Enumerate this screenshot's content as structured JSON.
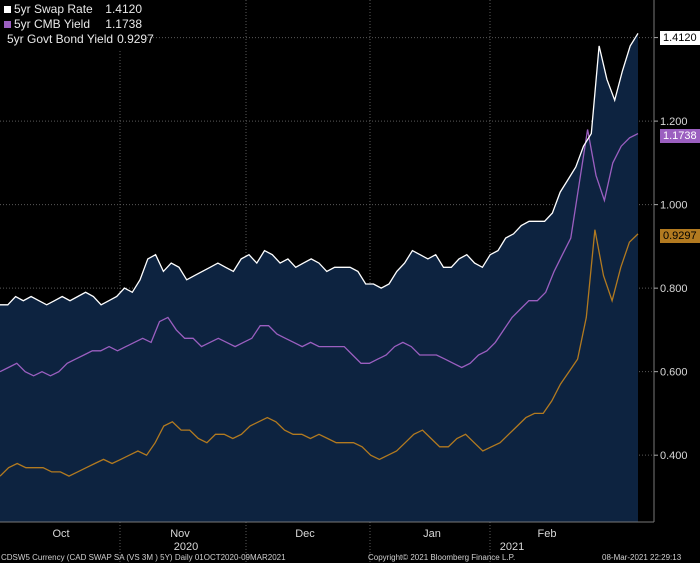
{
  "chart_data": {
    "type": "line",
    "x_labels": [
      "Oct",
      "Nov",
      "Dec",
      "Jan",
      "Feb"
    ],
    "x_year_labels": [
      "2020",
      "2021"
    ],
    "y_ticks": [
      "0.400",
      "0.600",
      "0.800",
      "1.000",
      "1.200",
      "1.4000"
    ],
    "ylim": [
      0.24,
      1.49
    ],
    "grid": true,
    "legend_position": "top-left",
    "series": [
      {
        "name": "5yr Swap Rate",
        "display_value": "1.4120",
        "color": "#ffffff",
        "values": [
          0.76,
          0.76,
          0.78,
          0.77,
          0.78,
          0.77,
          0.76,
          0.77,
          0.78,
          0.77,
          0.78,
          0.79,
          0.78,
          0.76,
          0.77,
          0.78,
          0.8,
          0.79,
          0.82,
          0.87,
          0.88,
          0.84,
          0.86,
          0.85,
          0.82,
          0.83,
          0.84,
          0.85,
          0.86,
          0.85,
          0.84,
          0.87,
          0.88,
          0.86,
          0.89,
          0.88,
          0.86,
          0.87,
          0.85,
          0.86,
          0.87,
          0.86,
          0.84,
          0.85,
          0.85,
          0.85,
          0.84,
          0.81,
          0.81,
          0.8,
          0.81,
          0.84,
          0.86,
          0.89,
          0.88,
          0.87,
          0.88,
          0.85,
          0.85,
          0.87,
          0.88,
          0.86,
          0.85,
          0.88,
          0.89,
          0.92,
          0.93,
          0.95,
          0.96,
          0.96,
          0.96,
          0.98,
          1.03,
          1.06,
          1.09,
          1.14,
          1.17,
          1.38,
          1.3,
          1.25,
          1.32,
          1.38,
          1.41
        ]
      },
      {
        "name": "5yr CMB Yield",
        "display_value": "1.1738",
        "color": "#9b5fc0",
        "values": [
          0.6,
          0.61,
          0.62,
          0.6,
          0.59,
          0.6,
          0.59,
          0.6,
          0.62,
          0.63,
          0.64,
          0.65,
          0.65,
          0.66,
          0.65,
          0.66,
          0.67,
          0.68,
          0.67,
          0.72,
          0.73,
          0.7,
          0.68,
          0.68,
          0.66,
          0.67,
          0.68,
          0.67,
          0.66,
          0.67,
          0.68,
          0.71,
          0.71,
          0.69,
          0.68,
          0.67,
          0.66,
          0.67,
          0.66,
          0.66,
          0.66,
          0.66,
          0.64,
          0.62,
          0.62,
          0.63,
          0.64,
          0.66,
          0.67,
          0.66,
          0.64,
          0.64,
          0.64,
          0.63,
          0.62,
          0.61,
          0.62,
          0.64,
          0.65,
          0.67,
          0.7,
          0.73,
          0.75,
          0.77,
          0.77,
          0.79,
          0.84,
          0.88,
          0.92,
          1.05,
          1.18,
          1.07,
          1.01,
          1.1,
          1.14,
          1.16,
          1.17
        ]
      },
      {
        "name": "5yr Govt Bond Yield",
        "display_value": "0.9297",
        "color": "#b27a20",
        "values": [
          0.35,
          0.37,
          0.38,
          0.37,
          0.37,
          0.37,
          0.36,
          0.36,
          0.35,
          0.36,
          0.37,
          0.38,
          0.39,
          0.38,
          0.39,
          0.4,
          0.41,
          0.4,
          0.43,
          0.47,
          0.48,
          0.46,
          0.46,
          0.44,
          0.43,
          0.45,
          0.45,
          0.44,
          0.45,
          0.47,
          0.48,
          0.49,
          0.48,
          0.46,
          0.45,
          0.45,
          0.44,
          0.45,
          0.44,
          0.43,
          0.43,
          0.43,
          0.42,
          0.4,
          0.39,
          0.4,
          0.41,
          0.43,
          0.45,
          0.46,
          0.44,
          0.42,
          0.42,
          0.44,
          0.45,
          0.43,
          0.41,
          0.42,
          0.43,
          0.45,
          0.47,
          0.49,
          0.5,
          0.5,
          0.53,
          0.57,
          0.6,
          0.63,
          0.73,
          0.94,
          0.83,
          0.77,
          0.85,
          0.91,
          0.93
        ]
      }
    ]
  },
  "footer": {
    "left": "CDSW5 Currency (CAD SWAP SA (VS 3M ) 5Y)  Daily 01OCT2020-09MAR2021",
    "center": "Copyright© 2021 Bloomberg Finance L.P.",
    "right": "08-Mar-2021 22:29:13"
  }
}
